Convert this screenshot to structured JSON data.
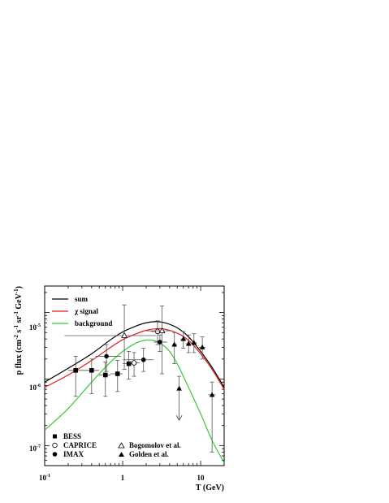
{
  "chart_data": {
    "type": "scatter",
    "xscale": "log",
    "yscale": "log",
    "xlim": [
      0.1,
      20
    ],
    "ylim": [
      5e-08,
      2.5e-05
    ],
    "xlabel": "T (GeV)",
    "ylabel": {
      "main": "p flux (cm",
      "sup1": "-2",
      "mid1": " s",
      "sup2": "-1",
      "mid2": " sr",
      "sup3": "-1",
      "mid3": " GeV",
      "sup4": "-1",
      "end": ")"
    },
    "xticks": [
      {
        "value": 0.1,
        "base": "10",
        "exp": "-1"
      },
      {
        "value": 1,
        "base": "1",
        "exp": ""
      },
      {
        "value": 10,
        "base": "10",
        "exp": ""
      }
    ],
    "yticks": [
      {
        "value": 1e-07,
        "base": "10",
        "exp": "-7"
      },
      {
        "value": 1e-06,
        "base": "10",
        "exp": "-6"
      },
      {
        "value": 1e-05,
        "base": "10",
        "exp": "-5"
      }
    ],
    "curves": [
      {
        "key": "sum",
        "name": "sum",
        "color": "#000000",
        "points": [
          [
            0.1,
            9e-07
          ],
          [
            0.2,
            1.45e-06
          ],
          [
            0.4,
            2.4e-06
          ],
          [
            0.7,
            3.9e-06
          ],
          [
            1.0,
            5.1e-06
          ],
          [
            1.5,
            6.3e-06
          ],
          [
            2.0,
            7e-06
          ],
          [
            2.7,
            7.3e-06
          ],
          [
            3.5,
            7e-06
          ],
          [
            5.0,
            5.9e-06
          ],
          [
            7.0,
            4.3e-06
          ],
          [
            10,
            2.6e-06
          ],
          [
            14,
            1.5e-06
          ],
          [
            20,
            7.5e-07
          ]
        ]
      },
      {
        "key": "signal",
        "name": "signal",
        "greek": "χ",
        "color": "#e41a1c",
        "points": [
          [
            0.1,
            7.5e-07
          ],
          [
            0.2,
            1.15e-06
          ],
          [
            0.4,
            1.9e-06
          ],
          [
            0.7,
            3e-06
          ],
          [
            1.0,
            3.9e-06
          ],
          [
            1.5,
            4.8e-06
          ],
          [
            2.0,
            5.4e-06
          ],
          [
            2.7,
            5.7e-06
          ],
          [
            3.5,
            5.6e-06
          ],
          [
            5.0,
            4.9e-06
          ],
          [
            7.0,
            3.8e-06
          ],
          [
            10,
            2.4e-06
          ],
          [
            14,
            1.4e-06
          ],
          [
            20,
            7e-07
          ]
        ]
      },
      {
        "key": "background",
        "name": "background",
        "color": "#33cc33",
        "points": [
          [
            0.1,
            1.7e-07
          ],
          [
            0.2,
            3.6e-07
          ],
          [
            0.4,
            9e-07
          ],
          [
            0.7,
            1.8e-06
          ],
          [
            1.0,
            2.6e-06
          ],
          [
            1.5,
            3.5e-06
          ],
          [
            2.0,
            3.85e-06
          ],
          [
            2.5,
            3.8e-06
          ],
          [
            3.0,
            3.5e-06
          ],
          [
            4.0,
            2.6e-06
          ],
          [
            5.0,
            1.7e-06
          ],
          [
            7.0,
            7.5e-07
          ],
          [
            10,
            3e-07
          ],
          [
            14,
            1.2e-07
          ],
          [
            20,
            5.5e-08
          ]
        ]
      }
    ],
    "datasets": [
      {
        "key": "bess",
        "name": "BESS",
        "marker": "square-filled",
        "points": [
          {
            "x": 0.25,
            "y": 1.35e-06,
            "xerr": [
              0.2,
              0.31
            ],
            "yerr": [
              5.5e-07,
              2.2e-06
            ]
          },
          {
            "x": 0.4,
            "y": 1.35e-06,
            "xerr": [
              0.31,
              0.5
            ],
            "yerr": [
              6e-07,
              2e-06
            ]
          },
          {
            "x": 0.6,
            "y": 1.15e-06,
            "xerr": [
              0.5,
              0.7
            ],
            "yerr": [
              5.5e-07,
              1.8e-06
            ]
          },
          {
            "x": 0.86,
            "y": 1.2e-06,
            "xerr": [
              0.7,
              1.0
            ],
            "yerr": [
              6.5e-07,
              1.9e-06
            ]
          },
          {
            "x": 1.2,
            "y": 1.7e-06,
            "xerr": [
              1.0,
              1.45
            ],
            "yerr": [
              1e-06,
              2.6e-06
            ]
          }
        ]
      },
      {
        "key": "caprice",
        "name": "CAPRICE",
        "marker": "circle-open",
        "points": [
          {
            "x": 1.4,
            "y": 1.75e-06,
            "xerr": [
              1.2,
              1.65
            ],
            "yerr": [
              1.1e-06,
              2.5e-06
            ]
          },
          {
            "x": 2.8,
            "y": 5.2e-06,
            "xerr": [
              2.3,
              3.2
            ],
            "yerr": [
              3.3e-06,
              7.5e-06
            ]
          }
        ]
      },
      {
        "key": "imax",
        "name": "IMAX",
        "marker": "circle-filled",
        "points": [
          {
            "x": 0.62,
            "y": 2.2e-06,
            "xerr": [
              0.45,
              0.95
            ],
            "yerr": [
              1.3e-06,
              3.3e-06
            ]
          },
          {
            "x": 1.85,
            "y": 1.95e-06,
            "xerr": [
              1.0,
              2.5
            ],
            "yerr": [
              1.3e-06,
              2.9e-06
            ]
          },
          {
            "x": 3.0,
            "y": 3.6e-06,
            "xerr": [
              2.5,
              3.7
            ],
            "yerr": [
              2.6e-06,
              4.6e-06
            ]
          }
        ]
      },
      {
        "key": "bogomolov",
        "name": "Bogomolov et al.",
        "marker": "triangle-open",
        "points": [
          {
            "x": 1.05,
            "y": 4.5e-06,
            "xerr": [
              0.18,
              2.7
            ],
            "yerr": [
              1.4e-06,
              1.3e-05
            ]
          },
          {
            "x": 3.2,
            "y": 5.3e-06,
            "xerr": [
              2.0,
              4.3
            ],
            "yerr": [
              1.2e-06,
              1.25e-05
            ]
          }
        ]
      },
      {
        "key": "golden",
        "name": "Golden et al.",
        "marker": "triangle-filled",
        "points": [
          {
            "x": 4.6,
            "y": 3.3e-06,
            "xerr": [
              4.3,
              5.0
            ],
            "yerr": [
              1.7e-06,
              5e-06
            ]
          },
          {
            "x": 5.3,
            "y": 7.2e-07,
            "xerr": [
              5.0,
              5.6
            ],
            "yerr": [
              2.4e-07,
              1.1e-06
            ],
            "upper_limit": true
          },
          {
            "x": 6.0,
            "y": 4e-06,
            "xerr": [
              5.5,
              6.5
            ],
            "yerr": [
              2.9e-06,
              5.2e-06
            ]
          },
          {
            "x": 7.0,
            "y": 3.4e-06,
            "xerr": [
              6.5,
              7.5
            ],
            "yerr": [
              2.5e-06,
              4.6e-06
            ]
          },
          {
            "x": 8.2,
            "y": 3.5e-06,
            "xerr": [
              7.5,
              9.0
            ],
            "yerr": [
              2.5e-06,
              4.8e-06
            ]
          },
          {
            "x": 10.5,
            "y": 3e-06,
            "xerr": [
              9.5,
              11.5
            ],
            "yerr": [
              2e-06,
              4.3e-06
            ]
          },
          {
            "x": 14.0,
            "y": 5.8e-07,
            "xerr": [
              12.5,
              15.5
            ],
            "yerr": [
              8e-08,
              9e-07
            ]
          }
        ]
      }
    ],
    "legend_top": "upper-left",
    "legend_bottom": "lower-left"
  }
}
